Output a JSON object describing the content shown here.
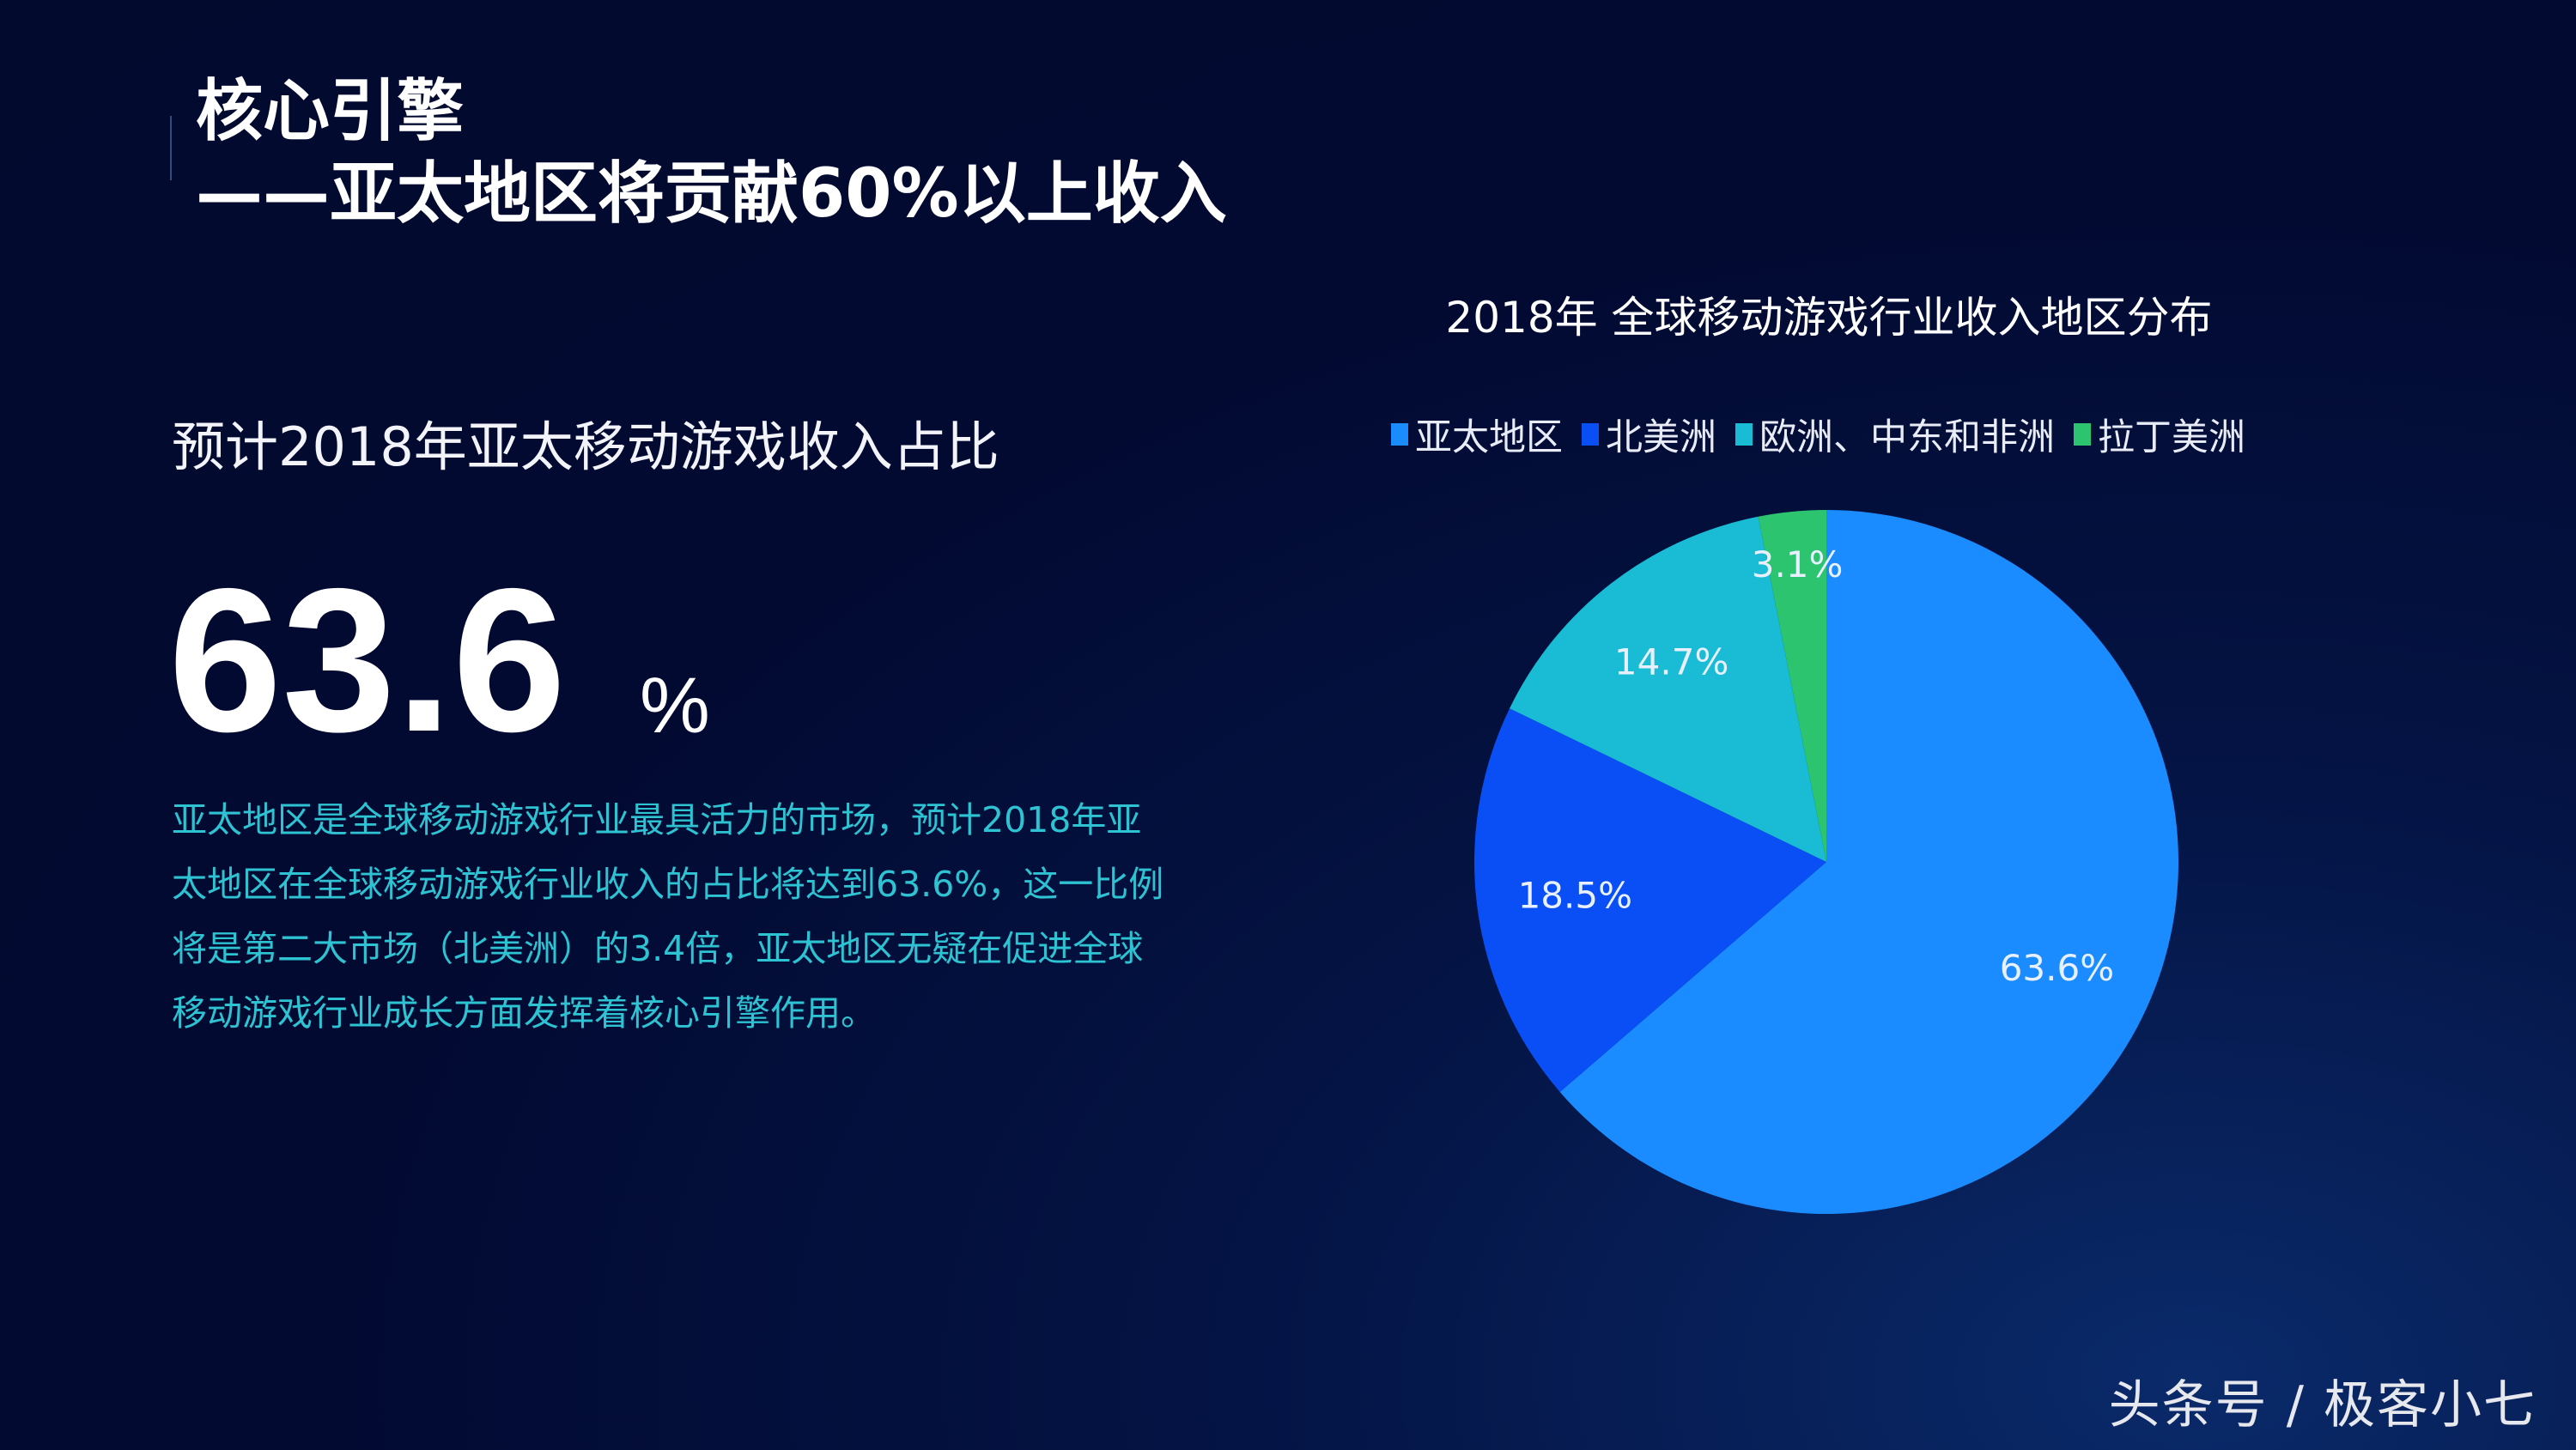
{
  "header": {
    "title_line1": "核心引擎",
    "title_line2": "——亚太地区将贡献60%以上收入"
  },
  "left": {
    "subtitle": "预计2018年亚太移动游戏收入占比",
    "big_value": "63.6",
    "big_unit": "%",
    "paragraph_lines": [
      "亚太地区是全球移动游戏行业最具活力的市场，预计2018年亚",
      "太地区在全球移动游戏行业收入的占比将达到63.6%，这一比例",
      "将是第二大市场（北美洲）的3.4倍，亚太地区无疑在促进全球",
      "移动游戏行业成长方面发挥着核心引擎作用。"
    ]
  },
  "chart_data": {
    "type": "pie",
    "title": "2018年 全球移动游戏行业收入地区分布",
    "legend_placement": "top",
    "start": "12 o'clock, clockwise",
    "categories": [
      "亚太地区",
      "北美洲",
      "欧洲、中东和非洲",
      "拉丁美洲"
    ],
    "values": [
      63.6,
      18.5,
      14.7,
      3.1
    ],
    "labels": [
      "63.6%",
      "18.5%",
      "14.7%",
      "3.1%"
    ],
    "colors": [
      "#1a8cff",
      "#0a4ff5",
      "#19bcd4",
      "#2cc46e"
    ]
  },
  "watermark": "头条号 / 极客小七"
}
